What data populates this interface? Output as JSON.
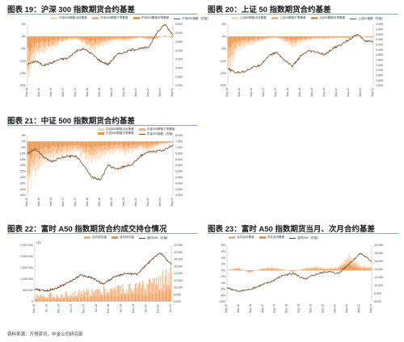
{
  "colors": {
    "basis": "#f5b07a",
    "light": "#fbd9b6",
    "mid": "#e8944a",
    "index": "#7a4a1e",
    "spot": "#6b3f1a",
    "title_rule": "#c99a5b"
  },
  "panels": [
    {
      "id": "p19",
      "title": "图表 19：沪深 300 指数期货合约基差",
      "legend": [
        "沪深300期指当月基差",
        "沪深300期指下季基差",
        "沪深300期指次季基差",
        "沪深300指数（右轴）"
      ]
    },
    {
      "id": "p20",
      "title": "图表 20：上证 50 指数期货合约基差",
      "legend": [
        "上证50期指当月基差",
        "上证50期指下季基差",
        "上证50期指次季基差",
        "上证50指数（右轴）"
      ]
    },
    {
      "id": "p21",
      "title": "图表 21：中证 500 指数期货合约基差",
      "legend": [
        "中证500期指当月基差",
        "中证500期指下季基差",
        "中证500期指次季基差",
        "中证500指数（右轴）"
      ]
    },
    {
      "id": "p22",
      "title": "图表 22：富时 A50 指数期货合约成交持仓情况",
      "legend": [
        "合约成交量",
        "合约持仓量",
        "富时A50（右轴）"
      ]
    },
    {
      "id": "p23",
      "title": "图表 23：富时 A50 指数期货当月、次月合约基差",
      "legend": [
        "当月合约基差",
        "次月合约基差",
        "富时A50（右轴）"
      ]
    }
  ],
  "source": "资料来源：万得资讯，中金公司研究部",
  "chart_data": [
    {
      "type": "line",
      "title": "沪深 300 指数期货合约基差",
      "y_ticks": [
        "5%",
        "0%",
        "-5%",
        "-10%",
        "-15%",
        "-20%"
      ],
      "y_range": [
        -20,
        5
      ],
      "y2_ticks": [
        "5,500",
        "5,000",
        "4,500",
        "4,000",
        "3,500",
        "3,000",
        "2,500",
        "2,000"
      ],
      "y2_range": [
        2000,
        5500
      ],
      "x_ticks": [
        "Sep-15",
        "Mar-16",
        "Sep-16",
        "Mar-17",
        "Sep-17",
        "Mar-18",
        "Sep-18",
        "Mar-19",
        "Sep-19",
        "Mar-20",
        "Sep-20",
        "Mar-21",
        "Sep-21"
      ],
      "series": [
        {
          "name": "沪深300指数（右轴）",
          "axis": "right",
          "values": [
            3200,
            3400,
            3150,
            3300,
            3500,
            3550,
            3950,
            4100,
            3800,
            3400,
            3200,
            3750,
            3900,
            4050,
            4100,
            4200,
            5000,
            5500,
            4900
          ]
        },
        {
          "name": "沪深300期指次季基差",
          "axis": "left",
          "values": [
            -9,
            -4,
            -3,
            -2.5,
            -1.5,
            -0.8,
            -0.5,
            -1.5,
            -3,
            -2,
            -1.2,
            -0.8,
            -1,
            -0.6,
            -0.3,
            -0.8,
            -0.5,
            0.3,
            -0.5
          ]
        }
      ]
    },
    {
      "type": "line",
      "title": "上证 50 指数期货合约基差",
      "y_ticks": [
        "5%",
        "0%",
        "-5%",
        "-10%",
        "-15%",
        "-20%"
      ],
      "y_range": [
        -20,
        5
      ],
      "y2_ticks": [
        "4,000",
        "3,800",
        "3,600",
        "3,400",
        "3,200",
        "3,000",
        "2,800",
        "2,600",
        "2,400",
        "2,200",
        "2,000",
        "1,800",
        "1,600"
      ],
      "y2_range": [
        1600,
        4000
      ],
      "x_ticks": [
        "Sep-15",
        "Mar-16",
        "Sep-16",
        "Mar-17",
        "Sep-17",
        "Mar-18",
        "Sep-18",
        "Mar-19",
        "Sep-19",
        "Mar-20",
        "Sep-20",
        "Mar-21",
        "Sep-21"
      ],
      "series": [
        {
          "name": "上证50指数（右轴）",
          "axis": "right",
          "values": [
            2250,
            2100,
            2150,
            2300,
            2400,
            2750,
            2900,
            2600,
            2350,
            2750,
            2950,
            2900,
            2800,
            3050,
            3200,
            3400,
            3600,
            3350,
            3300
          ]
        },
        {
          "name": "上证50期指次季基差",
          "axis": "left",
          "values": [
            -8,
            -3,
            -2,
            -1.5,
            -1,
            -0.5,
            -0.3,
            -1,
            -2,
            -1.2,
            -0.8,
            -0.5,
            -0.6,
            -0.4,
            -0.3,
            -0.5,
            0.3,
            -0.2,
            -0.3
          ]
        }
      ]
    },
    {
      "type": "line",
      "title": "中证 500 指数期货合约基差",
      "y_ticks": [
        "5%",
        "0%",
        "-5%",
        "-10%",
        "-15%",
        "-20%",
        "-25%",
        "-30%",
        "-35%",
        "-40%",
        "-45%"
      ],
      "y_range": [
        -45,
        5
      ],
      "y2_ticks": [
        "8,000",
        "7,500",
        "7,000",
        "6,500",
        "6,000",
        "5,500",
        "5,000",
        "4,500",
        "4,000",
        "3,500",
        "3,000"
      ],
      "y2_range": [
        3000,
        8000
      ],
      "x_ticks": [
        "Sep-15",
        "Mar-16",
        "Sep-16",
        "Mar-17",
        "Sep-17",
        "Mar-18",
        "Sep-18",
        "Mar-19",
        "Sep-19",
        "Mar-20",
        "Sep-20",
        "Mar-21",
        "Sep-21"
      ],
      "series": [
        {
          "name": "中证500指数（右轴）",
          "axis": "right",
          "values": [
            6500,
            6900,
            6200,
            5800,
            6100,
            6250,
            6300,
            5500,
            4500,
            4300,
            5500,
            5200,
            5400,
            5600,
            6300,
            6600,
            6700,
            6800,
            7200
          ]
        },
        {
          "name": "中证500期指次季基差",
          "axis": "left",
          "values": [
            -20,
            -12,
            -8,
            -7,
            -6,
            -5,
            -4,
            -6,
            -8,
            -6,
            -5,
            -4,
            -5,
            -4,
            -3,
            -4,
            -2,
            -1,
            -0.5
          ]
        }
      ]
    },
    {
      "type": "bar",
      "title": "富时 A50 指数期货合约成交持仓情况",
      "y_ticks": [
        "2,500,000",
        "2,000,000",
        "1,500,000",
        "1,000,000",
        "500,000",
        "0"
      ],
      "y_range": [
        0,
        2500000
      ],
      "y_label": "(手)",
      "y2_ticks": [
        "22,000",
        "20,000",
        "18,000",
        "16,000",
        "14,000",
        "12,000",
        "10,000",
        "8,000",
        "6,000"
      ],
      "y2_range": [
        6000,
        22000
      ],
      "x_ticks": [
        "Dec-15",
        "Jun-16",
        "Dec-16",
        "Jun-17",
        "Dec-17",
        "Jun-18",
        "Dec-18",
        "Jun-19",
        "Dec-19",
        "Jun-20",
        "Dec-20",
        "Jun-21"
      ],
      "series": [
        {
          "name": "合约成交量",
          "axis": "left",
          "values": [
            250000,
            300000,
            280000,
            350000,
            420000,
            500000,
            550000,
            600000,
            650000,
            700000,
            900000,
            1300000
          ]
        },
        {
          "name": "富时A50（右轴）",
          "axis": "right",
          "values": [
            9500,
            9000,
            10000,
            11500,
            13500,
            12800,
            11000,
            13000,
            14000,
            13800,
            17000,
            20000,
            16500
          ]
        }
      ]
    },
    {
      "type": "line",
      "title": "富时 A50 指数期货当月、次月合约基差",
      "y_ticks": [
        "8%",
        "6%",
        "4%",
        "2%",
        "0%",
        "-2%",
        "-4%",
        "-6%",
        "-8%",
        "-10%"
      ],
      "y_range": [
        -10,
        8
      ],
      "y2_ticks": [
        "20,000",
        "18,000",
        "16,000",
        "14,000",
        "12,000",
        "10,000",
        "8,000",
        "6,000"
      ],
      "y2_range": [
        6000,
        20000
      ],
      "x_ticks": [
        "Sep-15",
        "Mar-16",
        "Sep-16",
        "Mar-17",
        "Sep-17",
        "Mar-18",
        "Sep-18",
        "Mar-19",
        "Sep-19",
        "Mar-20",
        "Sep-20",
        "Mar-21",
        "Sep-21"
      ],
      "series": [
        {
          "name": "富时A50（右轴）",
          "axis": "right",
          "values": [
            9500,
            8500,
            9000,
            10000,
            11000,
            12500,
            13000,
            11500,
            12800,
            13500,
            13000,
            15500,
            18000,
            16000
          ]
        },
        {
          "name": "当月合约基差",
          "axis": "left",
          "values": [
            0,
            0.5,
            -0.5,
            0.3,
            0.5,
            0.2,
            -0.3,
            0.4,
            0.6,
            0.3,
            0.5,
            2.5,
            0.8,
            0.5
          ]
        }
      ]
    }
  ]
}
